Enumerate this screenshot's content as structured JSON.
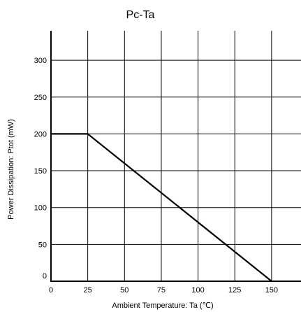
{
  "chart_data": {
    "type": "line",
    "title": "Pc-Ta",
    "xlabel": "Ambient Temperature: Ta (℃)",
    "ylabel": "Power Dissipation: Ptot (mW)",
    "xlim": [
      0,
      170
    ],
    "ylim": [
      0,
      340
    ],
    "x_ticks": [
      0,
      25,
      50,
      75,
      100,
      125,
      150
    ],
    "x_tick_labels": [
      "0",
      "25",
      "50",
      "75",
      "100",
      "125",
      "150"
    ],
    "y_ticks": [
      0,
      50,
      100,
      150,
      200,
      250,
      300
    ],
    "y_tick_labels": [
      "0",
      "50",
      "100",
      "150",
      "200",
      "250",
      "300"
    ],
    "grid": true,
    "series": [
      {
        "x": [
          0,
          25,
          150
        ],
        "y": [
          200,
          200,
          0
        ],
        "color": "#000000"
      }
    ]
  }
}
